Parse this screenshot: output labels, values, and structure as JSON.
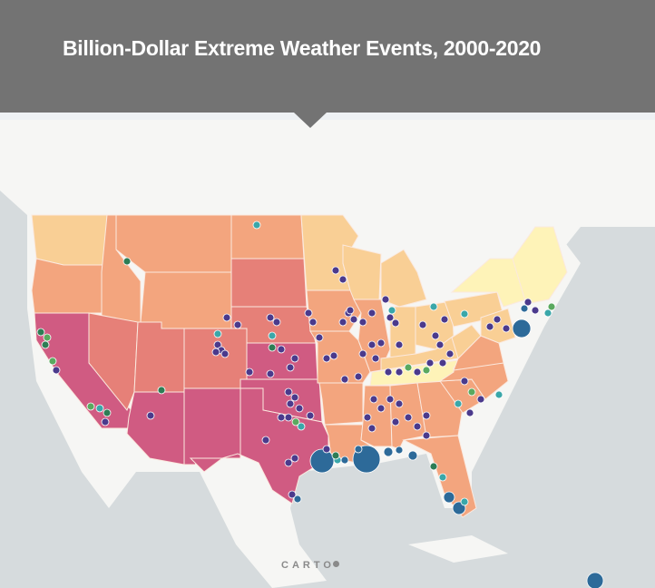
{
  "header": {
    "title": "Billion-Dollar Extreme Weather Events, 2000-2020"
  },
  "attribution": {
    "logo_text": "CARTO"
  },
  "colors": {
    "header_bg": "#737373",
    "water": "#d6dbdd",
    "land": "#f6f6f4",
    "choropleth": [
      "#fef3b8",
      "#f9cf95",
      "#f3a57e",
      "#e68078",
      "#d05b82"
    ],
    "events": {
      "purple": "#4b3a8c",
      "teal": "#3aa7a9",
      "green": "#5aa95f",
      "dark_green": "#2e7d55",
      "blue": "#2d6a99"
    }
  }
}
